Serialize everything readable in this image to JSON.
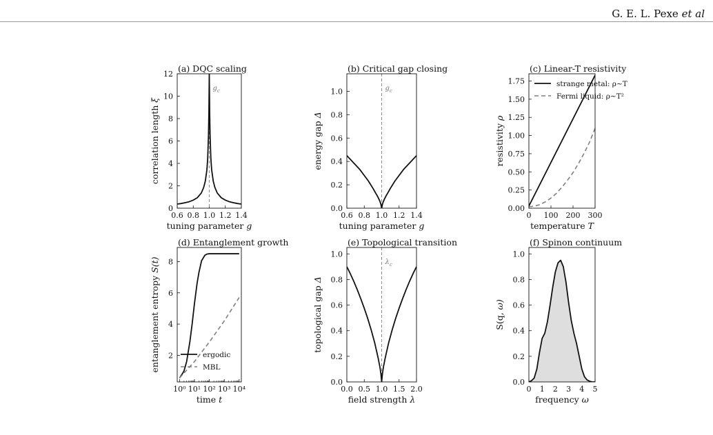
{
  "header": {
    "author_prefix": "G. E. L. Pexe ",
    "author_suffix": "et al"
  },
  "colors": {
    "solid": "#111111",
    "dashed": "#7f7f7f",
    "fill": "#dedede",
    "vline": "#888888"
  },
  "chart_data": [
    {
      "type": "line",
      "title": "(a) DQC scaling",
      "xlabel": "tuning parameter g",
      "ylabel": "correlation length ξ",
      "xlim": [
        0.6,
        1.4
      ],
      "ylim": [
        0,
        12
      ],
      "xticks": [
        "0.6",
        "0.8",
        "1.0",
        "1.2",
        "1.4"
      ],
      "yticks": [
        "0",
        "2",
        "4",
        "6",
        "8",
        "10",
        "12"
      ],
      "vline": {
        "x": 1.0,
        "label": "g_c"
      },
      "series": [
        {
          "style": "solid",
          "x": [
            0.6,
            0.65,
            0.7,
            0.75,
            0.8,
            0.85,
            0.9,
            0.93,
            0.95,
            0.97,
            0.98,
            0.99,
            0.995,
            1.0,
            1.005,
            1.01,
            1.02,
            1.03,
            1.05,
            1.07,
            1.1,
            1.15,
            1.2,
            1.25,
            1.3,
            1.35,
            1.4
          ],
          "y": [
            0.37,
            0.42,
            0.49,
            0.58,
            0.72,
            0.93,
            1.35,
            1.85,
            2.4,
            3.4,
            4.4,
            6.5,
            8.5,
            12.0,
            8.5,
            6.5,
            4.4,
            3.4,
            2.4,
            1.85,
            1.35,
            0.93,
            0.72,
            0.58,
            0.49,
            0.42,
            0.37
          ]
        }
      ]
    },
    {
      "type": "line",
      "title": "(b) Critical gap closing",
      "xlabel": "tuning parameter g",
      "ylabel": "energy gap Δ",
      "xlim": [
        0.6,
        1.4
      ],
      "ylim": [
        0,
        1.15
      ],
      "xticks": [
        "0.6",
        "0.8",
        "1.0",
        "1.2",
        "1.4"
      ],
      "yticks": [
        "0.0",
        "0.2",
        "0.4",
        "0.6",
        "0.8",
        "1.0"
      ],
      "vline": {
        "x": 1.0,
        "label": "g_c"
      },
      "series": [
        {
          "style": "solid",
          "x": [
            0.6,
            0.65,
            0.7,
            0.75,
            0.8,
            0.85,
            0.9,
            0.93,
            0.95,
            0.97,
            0.98,
            0.99,
            1.0,
            1.01,
            1.02,
            1.03,
            1.05,
            1.07,
            1.1,
            1.15,
            1.2,
            1.25,
            1.3,
            1.35,
            1.4
          ],
          "y": [
            0.45,
            0.41,
            0.37,
            0.33,
            0.28,
            0.23,
            0.17,
            0.13,
            0.105,
            0.075,
            0.058,
            0.037,
            0.0,
            0.037,
            0.058,
            0.075,
            0.105,
            0.13,
            0.17,
            0.23,
            0.28,
            0.33,
            0.37,
            0.41,
            0.45
          ]
        }
      ]
    },
    {
      "type": "line",
      "title": "(c) Linear-T resistivity",
      "xlabel": "temperature T",
      "ylabel": "resistivity ρ",
      "xlim": [
        0,
        300
      ],
      "ylim": [
        0,
        1.85
      ],
      "xticks": [
        "0",
        "100",
        "200",
        "300"
      ],
      "yticks": [
        "0.00",
        "0.25",
        "0.50",
        "0.75",
        "1.00",
        "1.25",
        "1.50",
        "1.75"
      ],
      "legend": "top-left",
      "series": [
        {
          "name": "strange metal: ρ∼T",
          "style": "solid",
          "x": [
            0,
            300
          ],
          "y": [
            0.03,
            1.83
          ]
        },
        {
          "name": "Fermi liquid: ρ∼T²",
          "style": "dashed",
          "x": [
            0,
            25,
            50,
            75,
            100,
            125,
            150,
            175,
            200,
            225,
            250,
            275,
            300
          ],
          "y": [
            0.02,
            0.028,
            0.05,
            0.088,
            0.14,
            0.205,
            0.29,
            0.385,
            0.49,
            0.615,
            0.755,
            0.91,
            1.1
          ]
        }
      ]
    },
    {
      "type": "line",
      "title": "(d) Entanglement growth",
      "xlabel": "time t",
      "ylabel": "entanglement entropy S(t)",
      "xscale": "log",
      "xlim": [
        0.7,
        14000
      ],
      "ylim": [
        0.3,
        8.9
      ],
      "xticks": [
        "10⁰",
        "10¹",
        "10²",
        "10³",
        "10⁴"
      ],
      "yticks": [
        "2",
        "4",
        "6",
        "8"
      ],
      "legend": "lower-right",
      "series": [
        {
          "name": "ergodic",
          "style": "solid",
          "x": [
            1,
            1.5,
            2,
            3,
            5,
            7,
            10,
            15,
            20,
            30,
            50,
            70,
            100,
            200,
            1000,
            10000
          ],
          "y": [
            0.55,
            0.8,
            1.0,
            1.6,
            2.9,
            4.0,
            5.3,
            6.6,
            7.3,
            8.05,
            8.4,
            8.48,
            8.5,
            8.5,
            8.5,
            8.5
          ]
        },
        {
          "name": "MBL",
          "style": "dashed",
          "x": [
            1,
            10,
            100,
            1000,
            10000
          ],
          "y": [
            0.55,
            1.6,
            2.85,
            4.2,
            5.7
          ]
        }
      ]
    },
    {
      "type": "line",
      "title": "(e) Topological transition",
      "xlabel": "field strength λ",
      "ylabel": "topological gap Δ",
      "xlim": [
        0,
        2
      ],
      "ylim": [
        0,
        1.05
      ],
      "xticks": [
        "0.0",
        "0.5",
        "1.0",
        "1.5",
        "2.0"
      ],
      "yticks": [
        "0.0",
        "0.2",
        "0.4",
        "0.6",
        "0.8",
        "1.0"
      ],
      "vline": {
        "x": 1.0,
        "label": "λ_c"
      },
      "series": [
        {
          "style": "solid",
          "x": [
            0,
            0.1,
            0.2,
            0.3,
            0.4,
            0.5,
            0.6,
            0.7,
            0.8,
            0.9,
            0.95,
            0.98,
            1.0,
            1.02,
            1.05,
            1.1,
            1.2,
            1.3,
            1.4,
            1.5,
            1.6,
            1.7,
            1.8,
            1.9,
            2.0
          ],
          "y": [
            0.9,
            0.845,
            0.785,
            0.72,
            0.65,
            0.575,
            0.495,
            0.405,
            0.305,
            0.185,
            0.115,
            0.06,
            0.0,
            0.06,
            0.115,
            0.185,
            0.305,
            0.405,
            0.495,
            0.575,
            0.65,
            0.72,
            0.785,
            0.845,
            0.9
          ]
        }
      ]
    },
    {
      "type": "area",
      "title": "(f) Spinon continuum",
      "xlabel": "frequency ω",
      "ylabel": "S(q, ω)",
      "xlim": [
        0,
        5
      ],
      "ylim": [
        0,
        1.05
      ],
      "xticks": [
        "0",
        "1",
        "2",
        "3",
        "4",
        "5"
      ],
      "yticks": [
        "0.0",
        "0.2",
        "0.4",
        "0.6",
        "0.8",
        "1.0"
      ],
      "series": [
        {
          "style": "solid-filled",
          "x": [
            0,
            0.2,
            0.4,
            0.6,
            0.8,
            1.0,
            1.2,
            1.4,
            1.6,
            1.8,
            2.0,
            2.2,
            2.4,
            2.6,
            2.8,
            3.0,
            3.2,
            3.4,
            3.6,
            3.8,
            4.0,
            4.2,
            4.4,
            4.6,
            4.8,
            5.0
          ],
          "y": [
            0.0,
            0.01,
            0.03,
            0.1,
            0.23,
            0.34,
            0.38,
            0.47,
            0.6,
            0.74,
            0.86,
            0.93,
            0.95,
            0.9,
            0.78,
            0.62,
            0.48,
            0.38,
            0.3,
            0.2,
            0.1,
            0.04,
            0.015,
            0.005,
            0.0,
            0.0
          ]
        }
      ]
    }
  ]
}
